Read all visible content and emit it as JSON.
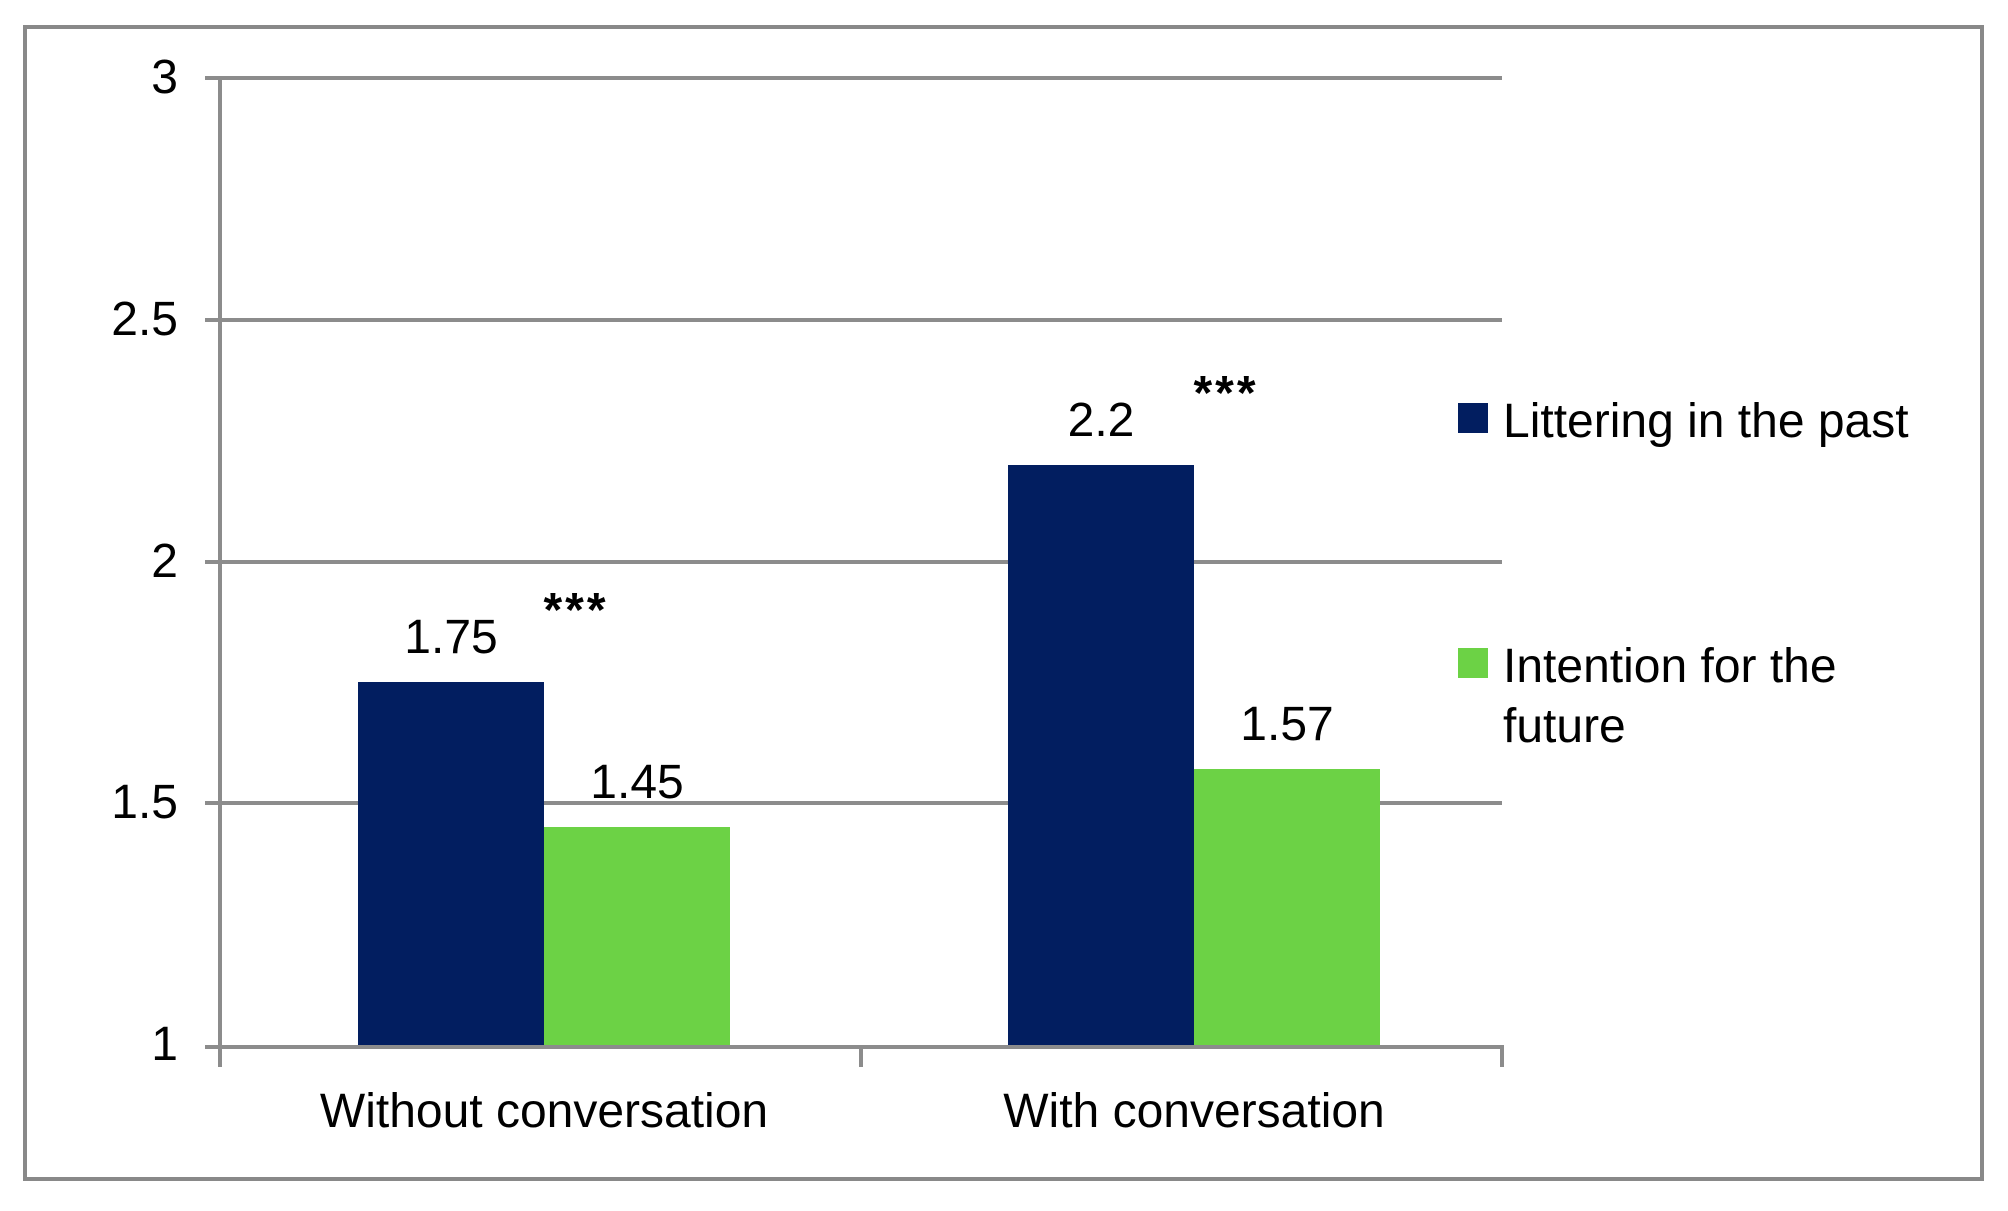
{
  "chart_data": {
    "type": "bar",
    "title": "",
    "categories": [
      "Without conversation",
      "With conversation"
    ],
    "series": [
      {
        "name": "Littering in the past",
        "color": "#021E60",
        "values": [
          1.75,
          2.2
        ],
        "value_labels": [
          "1.75",
          "2.2"
        ]
      },
      {
        "name": "Intention for the future",
        "color": "#6CD245",
        "values": [
          1.45,
          1.57
        ],
        "value_labels": [
          "1.45",
          "1.57"
        ]
      }
    ],
    "significance_markers": [
      {
        "category": "Without conversation",
        "text": "***"
      },
      {
        "category": "With conversation",
        "text": "***"
      }
    ],
    "y_axis": {
      "min": 1,
      "max": 3,
      "step": 0.5,
      "tick_labels": [
        "1",
        "1.5",
        "2",
        "2.5",
        "3"
      ]
    },
    "x_axis": {
      "labels": [
        "Without conversation",
        "With conversation"
      ]
    },
    "grid": true,
    "legend_position": "right",
    "colors": {
      "grid": "#8C8C8C",
      "axis": "#8C8C8C",
      "frame_border": "#898989",
      "text": "#000000",
      "background": "#FFFFFF"
    }
  }
}
